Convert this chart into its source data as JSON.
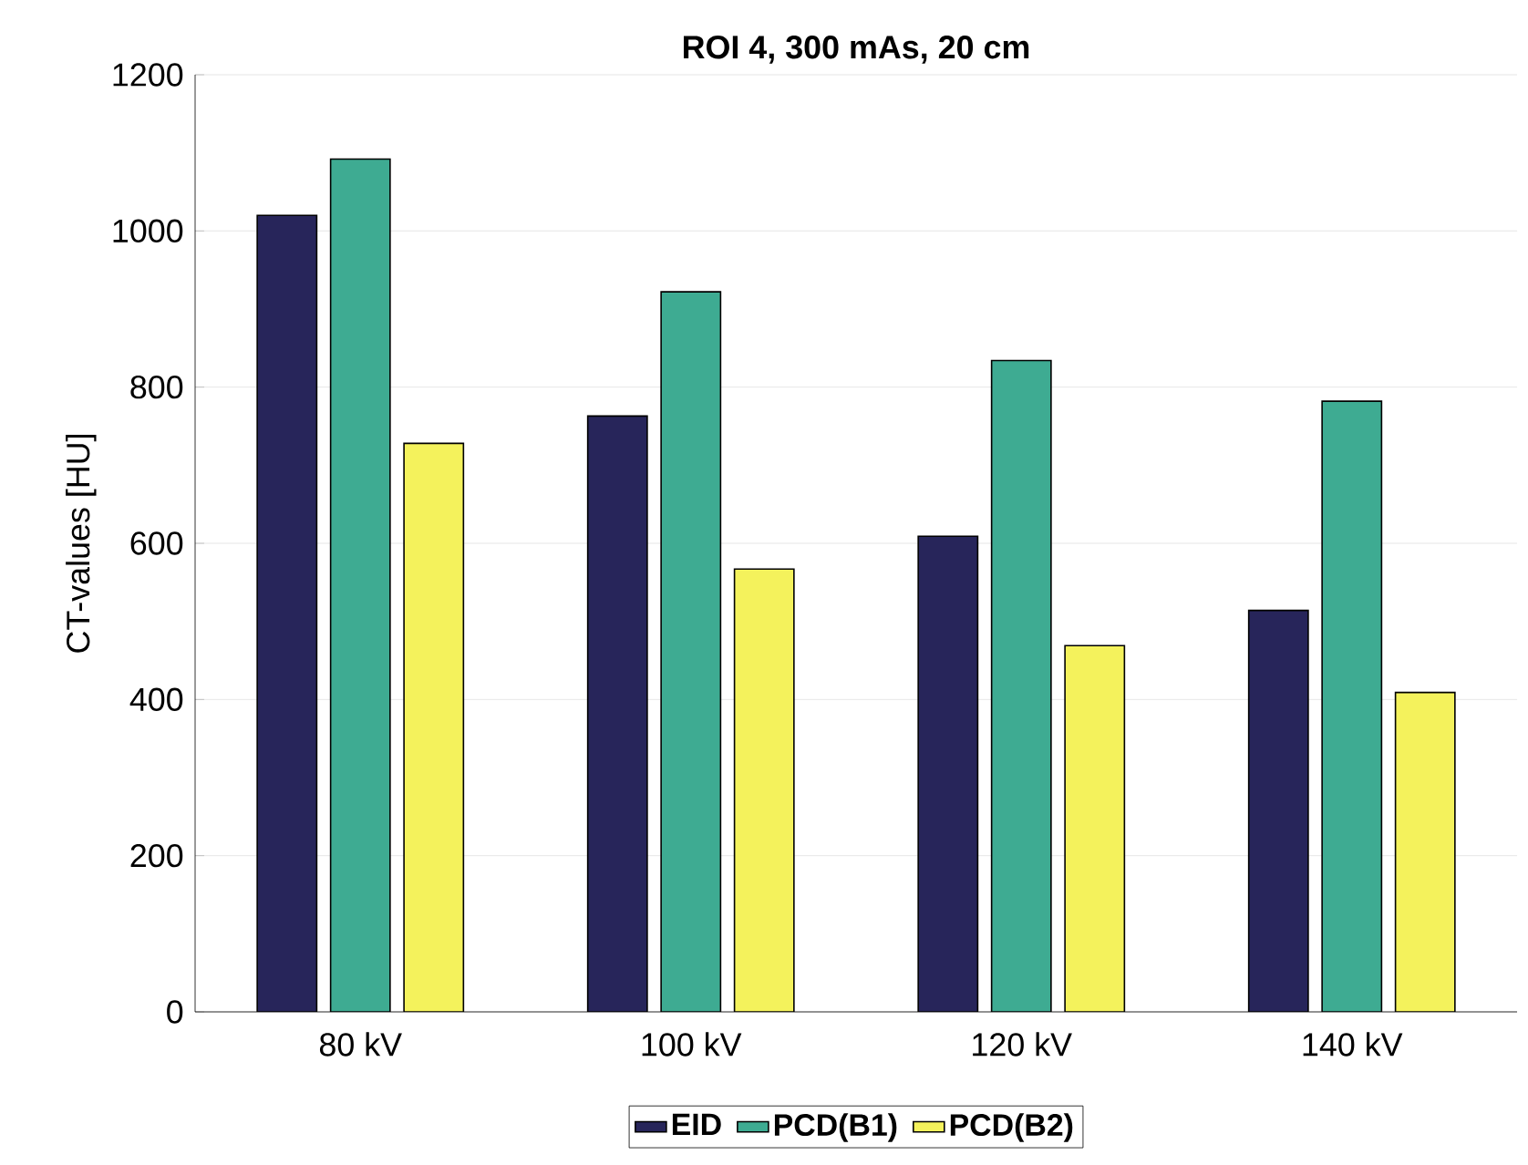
{
  "chart_data": {
    "type": "bar",
    "title": "ROI 4, 300 mAs, 20 cm",
    "ylabel": "CT-values [HU]",
    "categories": [
      "80 kV",
      "100 kV",
      "120 kV",
      "140 kV"
    ],
    "series": [
      {
        "name": "EID",
        "color": "#27255a",
        "values": [
          1020,
          763,
          609,
          514
        ]
      },
      {
        "name": "PCD(B1)",
        "color": "#3eab92",
        "values": [
          1092,
          922,
          834,
          782
        ]
      },
      {
        "name": "PCD(B2)",
        "color": "#f4f25c",
        "values": [
          728,
          567,
          469,
          409
        ]
      }
    ],
    "ylim": [
      0,
      1200
    ],
    "yticks": [
      0,
      200,
      400,
      600,
      800,
      1000,
      1200
    ],
    "grid": "y",
    "legend": "bottom"
  }
}
